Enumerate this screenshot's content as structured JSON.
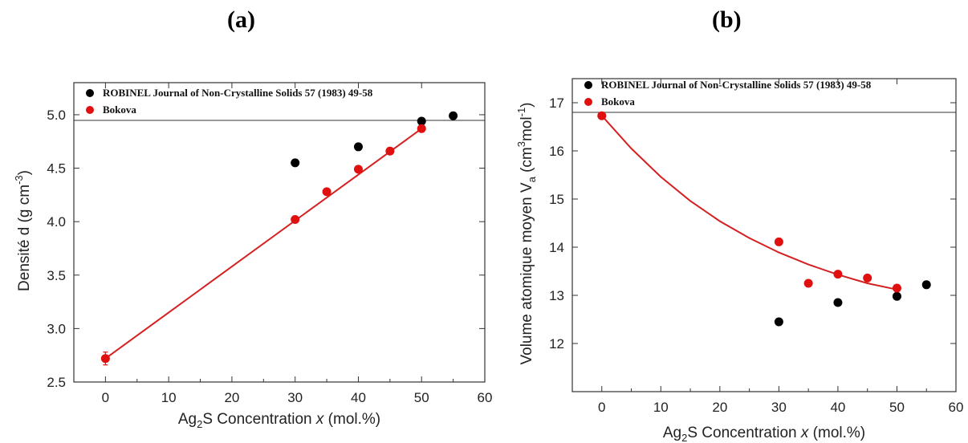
{
  "panel_labels": [
    "(a)",
    "(b)"
  ],
  "colors": {
    "robinel": "#000000",
    "bokova": "#e01010",
    "fit": "#d42020",
    "axis": "#333333"
  },
  "chart_data": [
    {
      "type": "scatter",
      "panel": "(a)",
      "xlabel": "Ag2S Concentration x (mol.%)",
      "ylabel": "Densité d (g cm-3)",
      "xlim": [
        -5,
        60
      ],
      "ylim": [
        2.5,
        5.3
      ],
      "xticks": [
        0,
        10,
        20,
        30,
        40,
        50,
        60
      ],
      "yticks": [
        2.5,
        3.0,
        3.5,
        4.0,
        4.5,
        5.0
      ],
      "ytick_labels": [
        "2.5",
        "3.0",
        "3.5",
        "4.0",
        "4.5",
        "5.0"
      ],
      "legend_position": "top-left",
      "series": [
        {
          "name": "ROBINEL Journal of Non-Crystalline Solids 57 (1983) 49-58",
          "color": "#000000",
          "x": [
            30,
            40,
            50,
            55
          ],
          "y": [
            4.55,
            4.7,
            4.94,
            4.99
          ]
        },
        {
          "name": "Bokova",
          "color": "#e01010",
          "x": [
            0,
            30,
            35,
            40,
            45,
            50
          ],
          "y": [
            2.72,
            4.02,
            4.28,
            4.49,
            4.66,
            4.87
          ]
        }
      ],
      "fit": {
        "type": "linear",
        "x": [
          0,
          50
        ],
        "y": [
          2.72,
          4.87
        ]
      }
    },
    {
      "type": "scatter",
      "panel": "(b)",
      "xlabel": "Ag2S Concentration x (mol.%)",
      "ylabel": "Volume atomique moyen Va (cm3mol-1)",
      "xlim": [
        -5,
        60
      ],
      "ylim": [
        11.0,
        17.5
      ],
      "xticks": [
        0,
        10,
        20,
        30,
        40,
        50,
        60
      ],
      "yticks": [
        12,
        13,
        14,
        15,
        16,
        17
      ],
      "ytick_labels": [
        "12",
        "13",
        "14",
        "15",
        "16",
        "17"
      ],
      "legend_position": "top-left",
      "series": [
        {
          "name": "ROBINEL Journal of Non-Crystalline Solids 57 (1983) 49-58",
          "color": "#000000",
          "x": [
            30,
            40,
            50,
            55
          ],
          "y": [
            12.45,
            12.85,
            12.98,
            13.22
          ]
        },
        {
          "name": "Bokova",
          "color": "#e01010",
          "x": [
            0,
            30,
            35,
            40,
            45,
            50
          ],
          "y": [
            16.73,
            14.11,
            13.25,
            13.44,
            13.36,
            13.15
          ]
        }
      ],
      "fit": {
        "type": "curve",
        "x": [
          0,
          5,
          10,
          15,
          20,
          25,
          30,
          35,
          40,
          45,
          50
        ],
        "y": [
          16.73,
          16.05,
          15.46,
          14.96,
          14.54,
          14.19,
          13.89,
          13.64,
          13.43,
          13.25,
          13.12
        ]
      }
    }
  ]
}
